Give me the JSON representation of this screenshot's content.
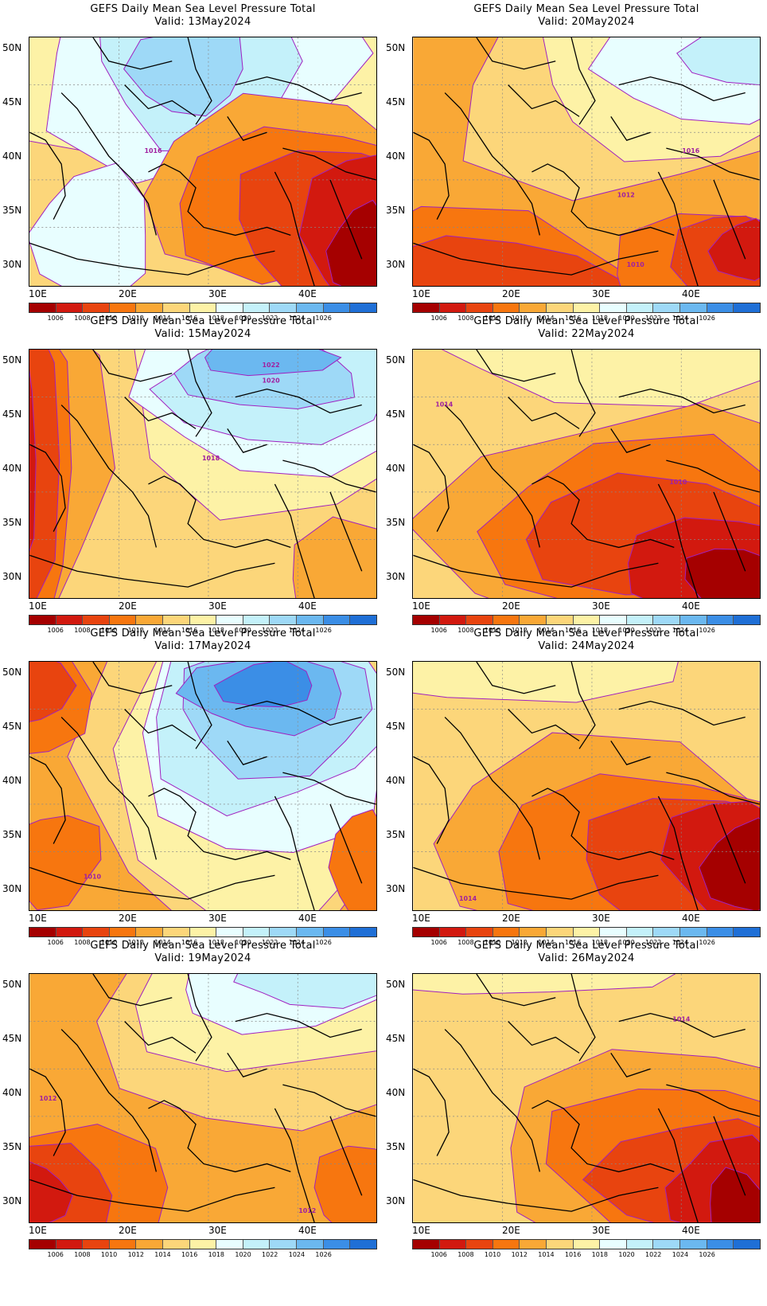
{
  "colorbar": {
    "levels": [
      "1006",
      "1008",
      "1010",
      "1012",
      "1014",
      "1016",
      "1018",
      "1020",
      "1022",
      "1024",
      "1026"
    ],
    "colors": [
      "#a50000",
      "#d2190f",
      "#e8440f",
      "#f7760f",
      "#f9a836",
      "#fcd67a",
      "#fdf2a6",
      "#e8feff",
      "#c4f1fa",
      "#9ed9f7",
      "#6bb8f0",
      "#3b8ee6",
      "#1f6fd6"
    ]
  },
  "axes": {
    "lat_labels": [
      "50N",
      "45N",
      "40N",
      "35N",
      "30N"
    ],
    "lon_labels": [
      "10E",
      "20E",
      "30E",
      "40E"
    ]
  },
  "panels": [
    {
      "title": "GEFS Daily Mean Sea Level Pressure Total",
      "valid": "Valid: 13May2024",
      "contour_labels": [
        "1016"
      ]
    },
    {
      "title": "GEFS Daily Mean Sea Level Pressure Total",
      "valid": "Valid: 20May2024",
      "contour_labels": [
        "1016",
        "1012",
        "1010"
      ]
    },
    {
      "title": "GEFS Daily Mean Sea Level Pressure Total",
      "valid": "Valid: 15May2024",
      "contour_labels": [
        "1022",
        "1020",
        "1018"
      ]
    },
    {
      "title": "GEFS Daily Mean Sea Level Pressure Total",
      "valid": "Valid: 22May2024",
      "contour_labels": [
        "1014",
        "1010"
      ]
    },
    {
      "title": "GEFS Daily Mean Sea Level Pressure Total",
      "valid": "Valid: 17May2024",
      "contour_labels": [
        "1010"
      ]
    },
    {
      "title": "GEFS Daily Mean Sea Level Pressure Total",
      "valid": "Valid: 24May2024",
      "contour_labels": [
        "1014"
      ]
    },
    {
      "title": "GEFS Daily Mean Sea Level Pressure Total",
      "valid": "Valid: 19May2024",
      "contour_labels": [
        "1012",
        "1012"
      ]
    },
    {
      "title": "GEFS Daily Mean Sea Level Pressure Total",
      "valid": "Valid: 26May2024",
      "contour_labels": [
        "1014"
      ]
    }
  ]
}
